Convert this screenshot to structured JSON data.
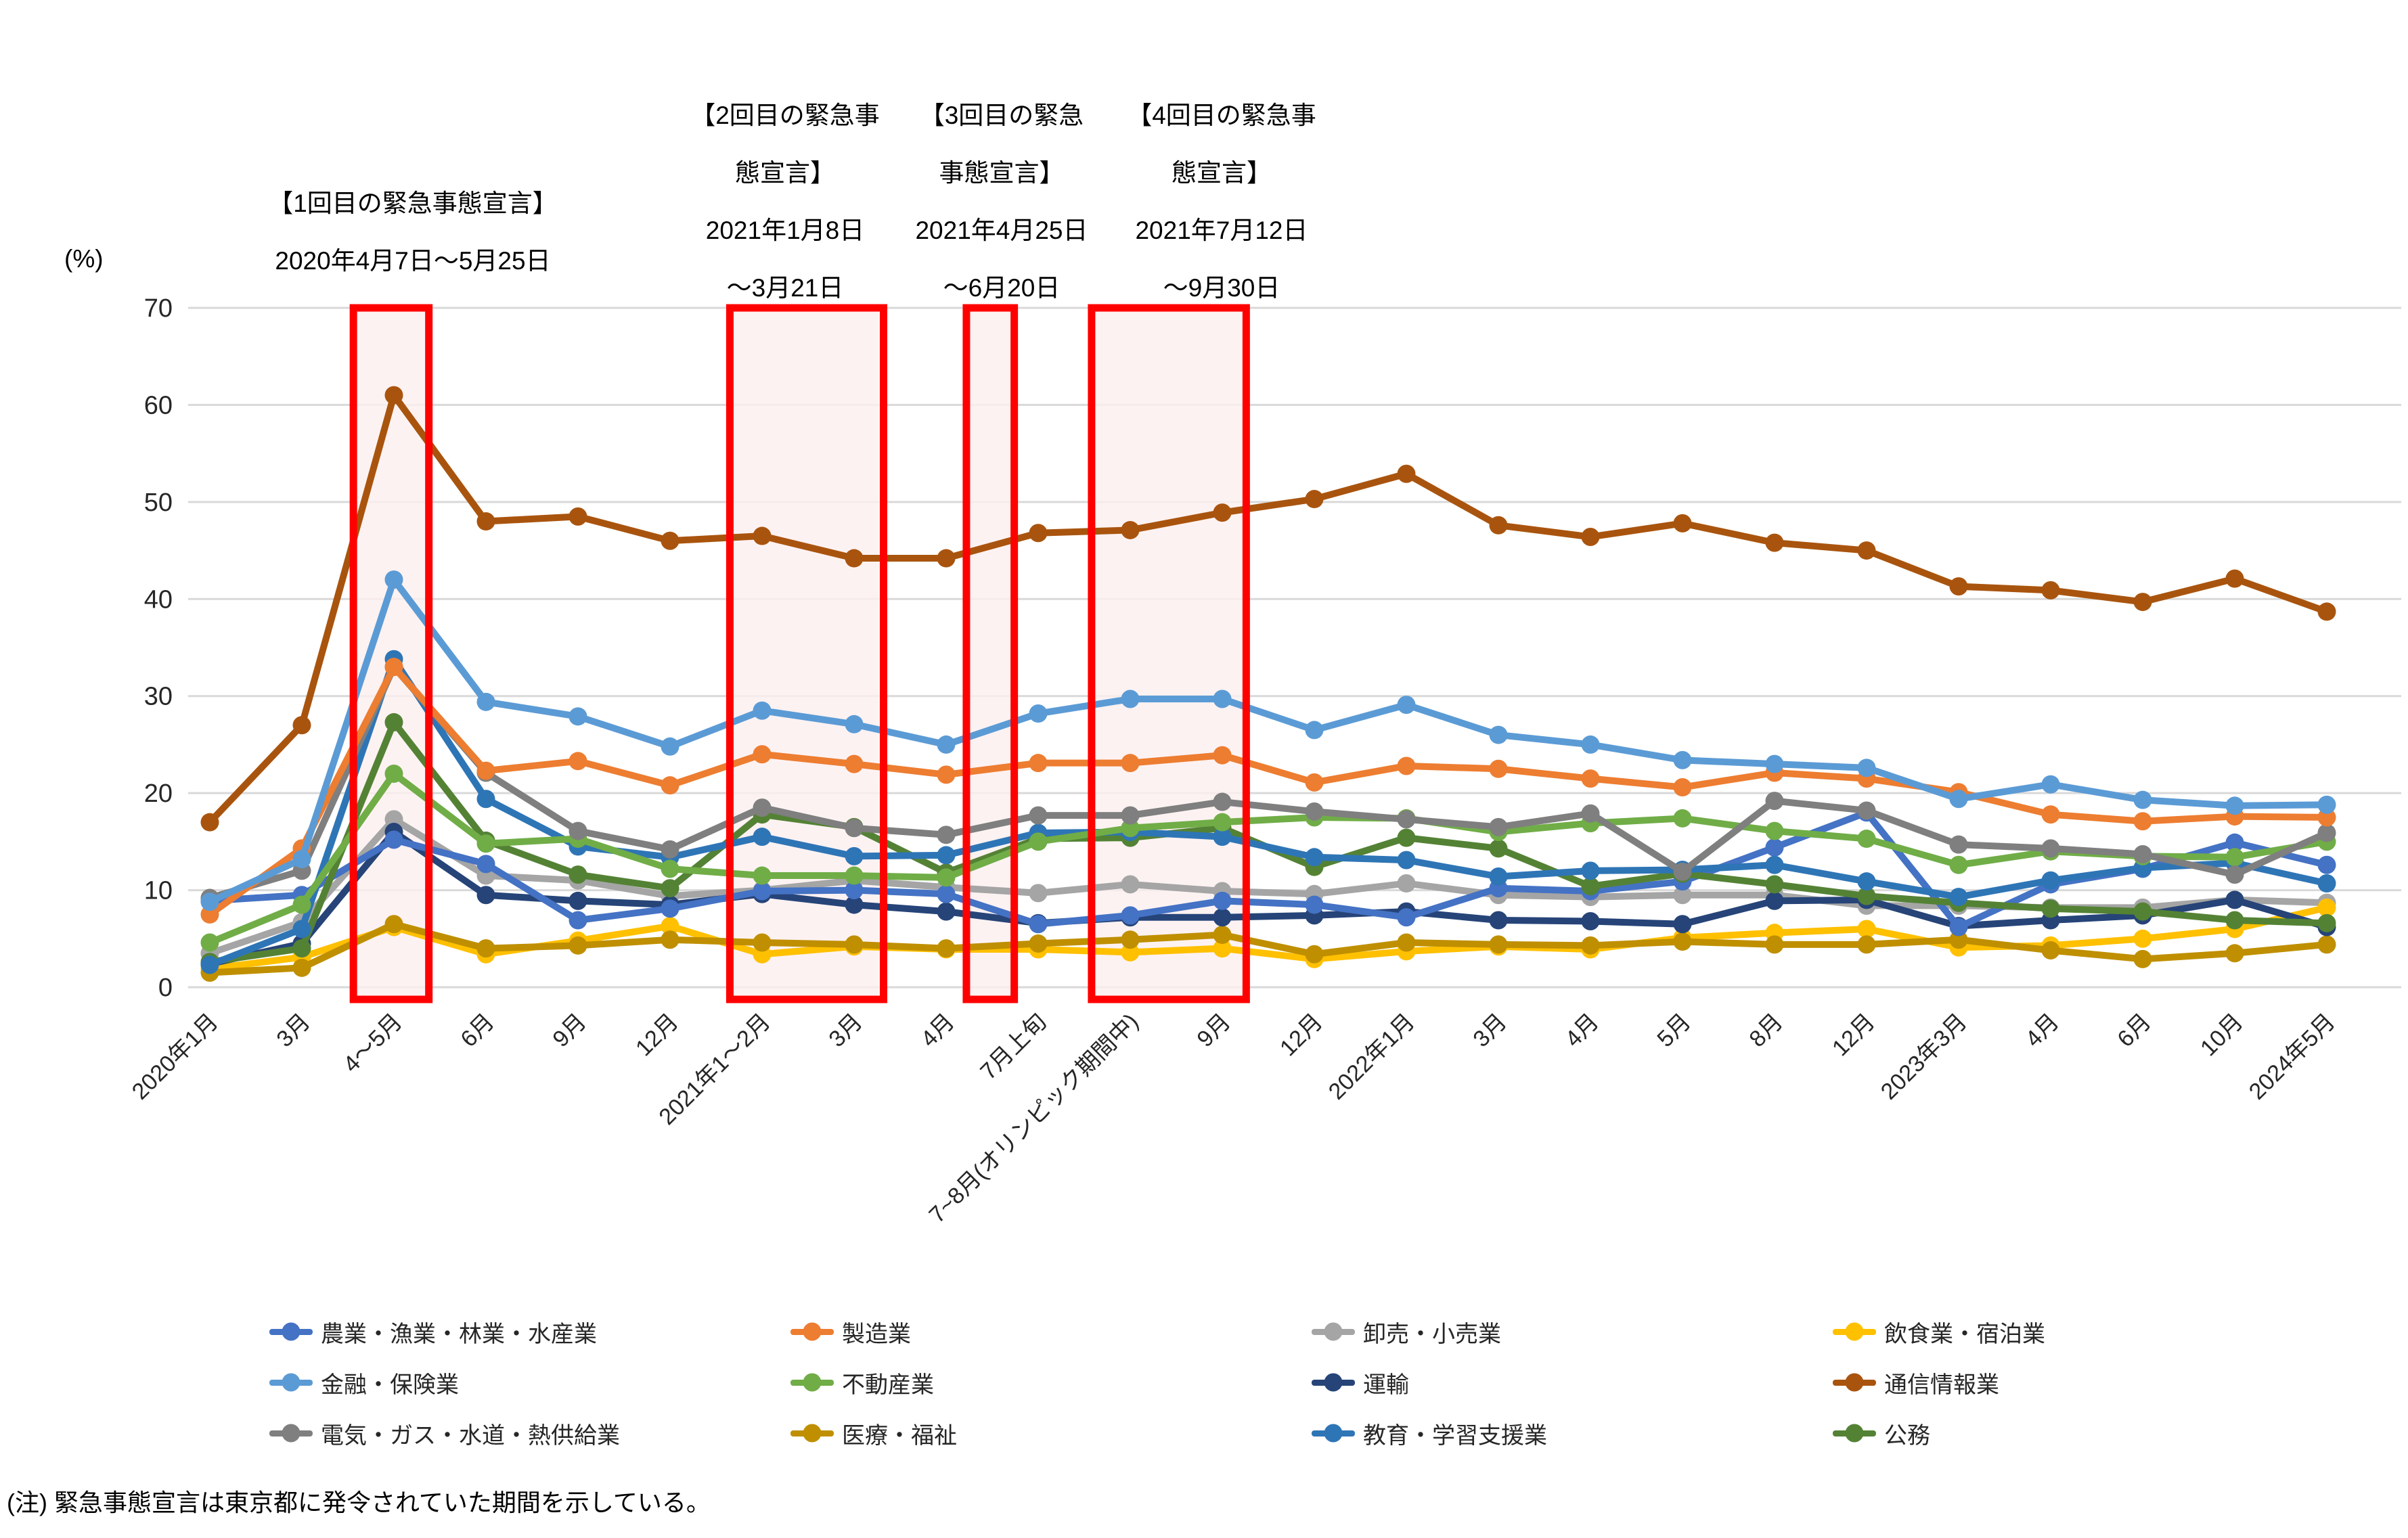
{
  "chart": {
    "y_unit": "(%)"
  },
  "note": "(注) 緊急事態宣言は東京都に発令されていた期間を示している。",
  "annotations": [
    {
      "lines": [
        "【1回目の緊急事態宣言】",
        "2020年4月7日～5月25日"
      ]
    },
    {
      "lines": [
        "【2回目の緊急事",
        "態宣言】",
        "2021年1月8日",
        "～3月21日"
      ]
    },
    {
      "lines": [
        "【3回目の緊急",
        "事態宣言】",
        "2021年4月25日",
        "～6月20日"
      ]
    },
    {
      "lines": [
        "【4回目の緊急事",
        "態宣言】",
        "2021年7月12日",
        "～9月30日"
      ]
    }
  ],
  "chart_data": {
    "type": "line",
    "title": "",
    "xlabel": "",
    "ylabel": "(%)",
    "ylim": [
      0,
      70
    ],
    "yticks": [
      0,
      10,
      20,
      30,
      40,
      50,
      60,
      70
    ],
    "grid": true,
    "legend_position": "bottom",
    "categories": [
      "2020年1月",
      "3月",
      "4～5月",
      "6月",
      "9月",
      "12月",
      "2021年1～2月",
      "3月",
      "4月",
      "7月上旬",
      "7~8月(オリンピック期間中)",
      "9月",
      "12月",
      "2022年1月",
      "3月",
      "4月",
      "5月",
      "8月",
      "12月",
      "2023年3月",
      "4月",
      "6月",
      "10月",
      "2024年5月"
    ],
    "series": [
      {
        "name": "農業・漁業・林業・水産業",
        "color": "#4472C4",
        "values": [
          8.9,
          9.5,
          15.2,
          12.7,
          6.9,
          8.1,
          9.9,
          10,
          9.6,
          6.5,
          7.4,
          8.9,
          8.5,
          7.2,
          10.2,
          9.9,
          10.9,
          14.4,
          18,
          6.2,
          10.6,
          12.2,
          14.9,
          12.6
        ]
      },
      {
        "name": "金融・保険業",
        "color": "#5B9BD5",
        "values": [
          8.8,
          13.2,
          42,
          29.4,
          27.9,
          24.8,
          28.5,
          27.1,
          25,
          28.2,
          29.7,
          29.7,
          26.5,
          29.1,
          26,
          25,
          23.4,
          23,
          22.6,
          19.4,
          20.9,
          19.3,
          18.7,
          18.8
        ]
      },
      {
        "name": "電気・ガス・水道・熱供給業",
        "color": "#7F7F7F",
        "values": [
          9.2,
          12,
          33,
          22.1,
          16.1,
          14.2,
          18.5,
          16.4,
          15.7,
          17.7,
          17.7,
          19.1,
          18.1,
          17.3,
          16.5,
          17.9,
          11.9,
          19.2,
          18.2,
          14.7,
          14.3,
          13.7,
          11.6,
          15.9
        ]
      },
      {
        "name": "製造業",
        "color": "#ED7D31",
        "values": [
          7.5,
          14.3,
          33,
          22.3,
          23.3,
          20.8,
          24,
          23,
          21.9,
          23.1,
          23.1,
          23.9,
          21.1,
          22.8,
          22.5,
          21.5,
          20.6,
          22.1,
          21.5,
          20.1,
          17.8,
          17.1,
          17.6,
          17.5
        ]
      },
      {
        "name": "不動産業",
        "color": "#70AD47",
        "values": [
          4.6,
          8.5,
          22,
          14.8,
          15.3,
          12.2,
          11.5,
          11.5,
          11.3,
          15,
          16.4,
          17,
          17.5,
          17.4,
          16,
          16.9,
          17.4,
          16.1,
          15.3,
          12.6,
          14,
          13.5,
          13.4,
          15
        ]
      },
      {
        "name": "医療・福祉",
        "color": "#BF8F00",
        "values": [
          1.5,
          2,
          6.5,
          4,
          4.3,
          4.9,
          4.6,
          4.4,
          4,
          4.5,
          4.9,
          5.4,
          3.4,
          4.6,
          4.4,
          4.3,
          4.7,
          4.4,
          4.4,
          4.9,
          3.8,
          2.9,
          3.5,
          4.4
        ]
      },
      {
        "name": "卸売・小売業",
        "color": "#A5A5A5",
        "values": [
          3.5,
          6.7,
          17.3,
          11.5,
          11,
          9.4,
          10,
          11,
          10.3,
          9.7,
          10.6,
          9.9,
          9.6,
          10.7,
          9.5,
          9.3,
          9.5,
          9.5,
          8.4,
          8.4,
          8.2,
          8.2,
          9,
          8.7
        ]
      },
      {
        "name": "運輸",
        "color": "#264478",
        "values": [
          2.4,
          4.5,
          16,
          9.5,
          8.9,
          8.5,
          9.6,
          8.5,
          7.8,
          6.6,
          7.2,
          7.2,
          7.4,
          7.8,
          6.9,
          6.8,
          6.5,
          8.9,
          9,
          6.3,
          6.9,
          7.4,
          9,
          6.2
        ]
      },
      {
        "name": "教育・学習支援業",
        "color": "#2E75B6",
        "values": [
          2.3,
          6,
          33.8,
          19.4,
          14.5,
          13.4,
          15.5,
          13.5,
          13.6,
          15.9,
          16,
          15.5,
          13.4,
          13.1,
          11.4,
          12,
          12.1,
          12.6,
          10.9,
          9.3,
          11,
          12.3,
          12.8,
          10.7
        ]
      },
      {
        "name": "飲食業・宿泊業",
        "color": "#FFC000",
        "values": [
          1.9,
          3.1,
          6.2,
          3.4,
          4.8,
          6.3,
          3.4,
          4.2,
          3.9,
          3.9,
          3.6,
          4,
          2.9,
          3.7,
          4.2,
          3.9,
          5.1,
          5.6,
          6,
          4.1,
          4.3,
          5,
          6,
          8.2
        ]
      },
      {
        "name": "通信情報業",
        "color": "#A9540E",
        "values": [
          17,
          27,
          61,
          48,
          48.5,
          46,
          46.5,
          44.2,
          44.2,
          46.8,
          47.1,
          48.9,
          50.3,
          52.9,
          47.6,
          46.4,
          47.8,
          45.8,
          45,
          41.3,
          40.9,
          39.7,
          42.1,
          38.7
        ]
      },
      {
        "name": "公務",
        "color": "#548235",
        "values": [
          2.6,
          4,
          27.3,
          15.1,
          11.6,
          10.2,
          17.8,
          16.5,
          11.8,
          15.3,
          15.4,
          16.4,
          12.4,
          15.4,
          14.3,
          10.4,
          11.7,
          10.6,
          9.4,
          8.7,
          8.1,
          7.8,
          6.9,
          6.6
        ]
      }
    ],
    "highlight_spans": [
      {
        "label": "1回目の緊急事態宣言",
        "from_index": 1.56,
        "to_index": 2.38,
        "border_color": "#FF0000",
        "fill_color": "#FCEFEF"
      },
      {
        "label": "2回目の緊急事態宣言",
        "from_index": 5.65,
        "to_index": 7.32,
        "border_color": "#FF0000",
        "fill_color": "#FCEFEF"
      },
      {
        "label": "3回目の緊急事態宣言",
        "from_index": 8.22,
        "to_index": 8.74,
        "border_color": "#FF0000",
        "fill_color": "#FCEFEF"
      },
      {
        "label": "4回目の緊急事態宣言",
        "from_index": 9.58,
        "to_index": 11.26,
        "border_color": "#FF0000",
        "fill_color": "#FCEFEF"
      }
    ]
  }
}
